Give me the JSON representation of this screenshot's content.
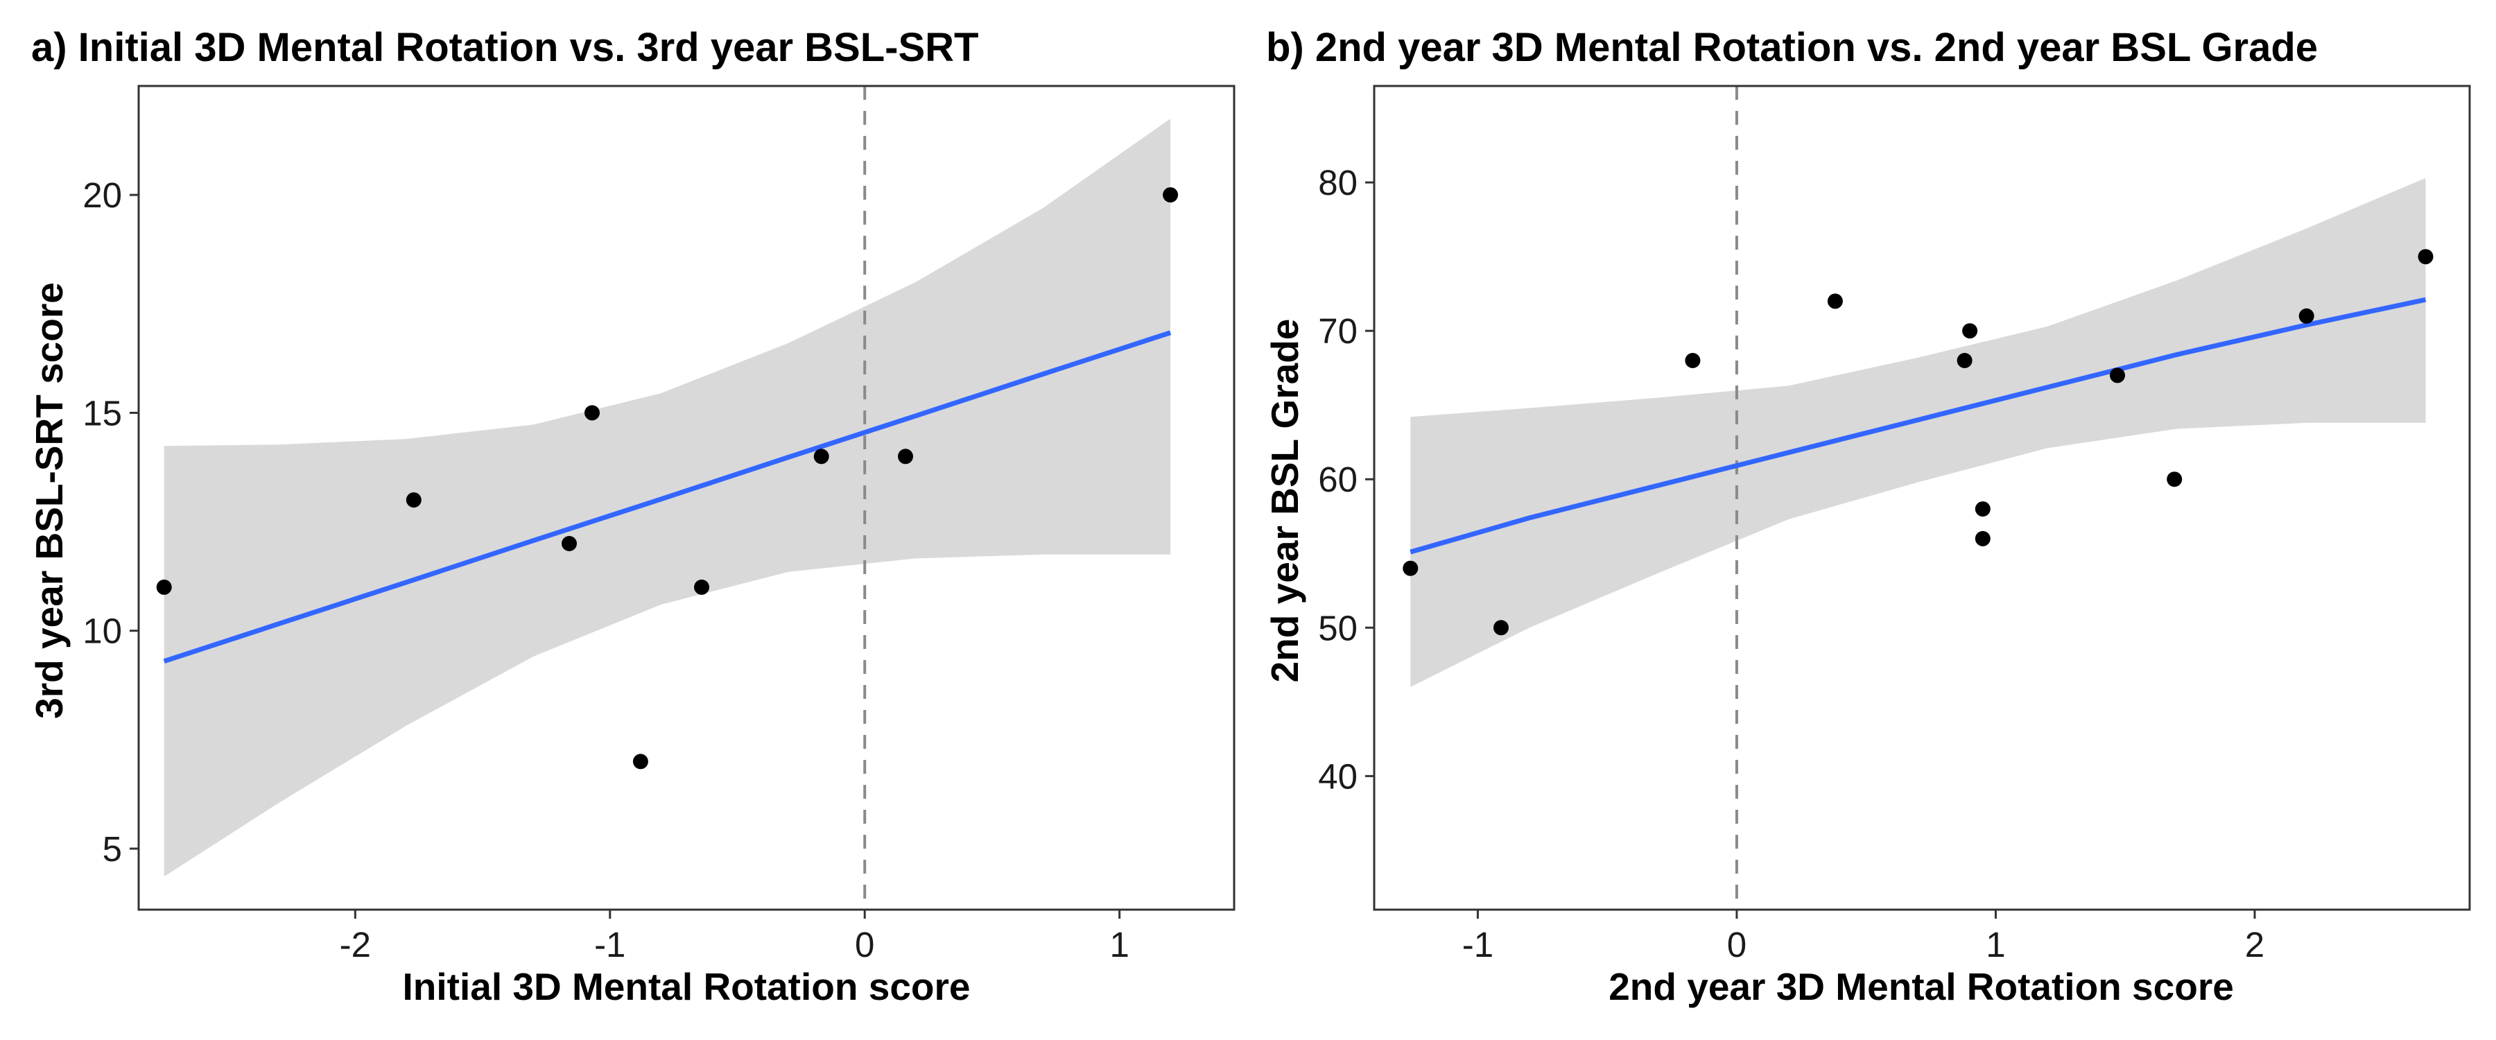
{
  "chart_data": [
    {
      "type": "scatter",
      "panel": "a",
      "title": "a) Initial 3D Mental Rotation vs. 3rd year BSL-SRT",
      "xlabel": "Initial 3D Mental Rotation score",
      "ylabel": "3rd year BSL-SRT score",
      "xlim": [
        -2.85,
        1.45
      ],
      "ylim": [
        3.6,
        22.5
      ],
      "xticks": [
        -2,
        -1,
        0,
        1
      ],
      "yticks": [
        5,
        10,
        15,
        20
      ],
      "xtick_labels": [
        "-2",
        "-1",
        "0",
        "1"
      ],
      "ytick_labels": [
        "5",
        "10",
        "15",
        "20"
      ],
      "vline_x": 0,
      "grid": false,
      "legend": "none",
      "points": [
        {
          "x": -2.75,
          "y": 11
        },
        {
          "x": -1.77,
          "y": 13
        },
        {
          "x": -1.16,
          "y": 12
        },
        {
          "x": -1.07,
          "y": 15
        },
        {
          "x": -0.88,
          "y": 7
        },
        {
          "x": -0.64,
          "y": 11
        },
        {
          "x": -0.17,
          "y": 14
        },
        {
          "x": 0.16,
          "y": 14
        },
        {
          "x": 1.2,
          "y": 20
        }
      ],
      "fit": {
        "x": [
          -2.75,
          -2.3,
          -1.8,
          -1.3,
          -0.8,
          -0.3,
          0.2,
          0.7,
          1.2
        ],
        "y": [
          9.3,
          10.16,
          11.11,
          12.07,
          13.02,
          13.98,
          14.93,
          15.89,
          16.84
        ],
        "ci_upper": [
          14.24,
          14.27,
          14.4,
          14.73,
          15.45,
          16.6,
          18.0,
          19.7,
          21.75
        ],
        "ci_lower": [
          4.36,
          6.05,
          7.82,
          9.41,
          10.6,
          11.35,
          11.66,
          11.75,
          11.75
        ]
      },
      "colors": {
        "points": "#000000",
        "fit": "#3366ff",
        "band": "#d9d9d9",
        "vline": "#8a8a8a"
      }
    },
    {
      "type": "scatter",
      "panel": "b",
      "title": "b) 2nd year 3D Mental Rotation vs. 2nd year BSL Grade",
      "xlabel": "2nd year 3D Mental Rotation score",
      "ylabel": "2nd year BSL Grade",
      "xlim": [
        -1.4,
        2.83
      ],
      "ylim": [
        31,
        86.5
      ],
      "xticks": [
        -1,
        0,
        1,
        2
      ],
      "yticks": [
        40,
        50,
        60,
        70,
        80
      ],
      "xtick_labels": [
        "-1",
        "0",
        "1",
        "2"
      ],
      "ytick_labels": [
        "40",
        "50",
        "60",
        "70",
        "80"
      ],
      "vline_x": 0,
      "grid": false,
      "legend": "none",
      "points": [
        {
          "x": -1.26,
          "y": 54
        },
        {
          "x": -0.91,
          "y": 50
        },
        {
          "x": -0.17,
          "y": 68
        },
        {
          "x": 0.38,
          "y": 72
        },
        {
          "x": 0.88,
          "y": 68
        },
        {
          "x": 0.9,
          "y": 70
        },
        {
          "x": 0.95,
          "y": 58
        },
        {
          "x": 0.95,
          "y": 56
        },
        {
          "x": 1.47,
          "y": 67
        },
        {
          "x": 1.69,
          "y": 60
        },
        {
          "x": 2.2,
          "y": 71
        },
        {
          "x": 2.66,
          "y": 75
        }
      ],
      "fit": {
        "x": [
          -1.26,
          -0.8,
          -0.3,
          0.2,
          0.7,
          1.2,
          1.7,
          2.2,
          2.66
        ],
        "y": [
          55.1,
          57.4,
          59.6,
          61.8,
          64.0,
          66.2,
          68.4,
          70.4,
          72.1
        ],
        "ci_upper": [
          64.2,
          64.8,
          65.5,
          66.3,
          68.2,
          70.3,
          73.4,
          76.9,
          80.3
        ],
        "ci_lower": [
          46.0,
          50.0,
          53.7,
          57.3,
          59.8,
          62.1,
          63.4,
          63.8,
          63.8
        ]
      },
      "colors": {
        "points": "#000000",
        "fit": "#3366ff",
        "band": "#d9d9d9",
        "vline": "#8a8a8a"
      }
    }
  ]
}
